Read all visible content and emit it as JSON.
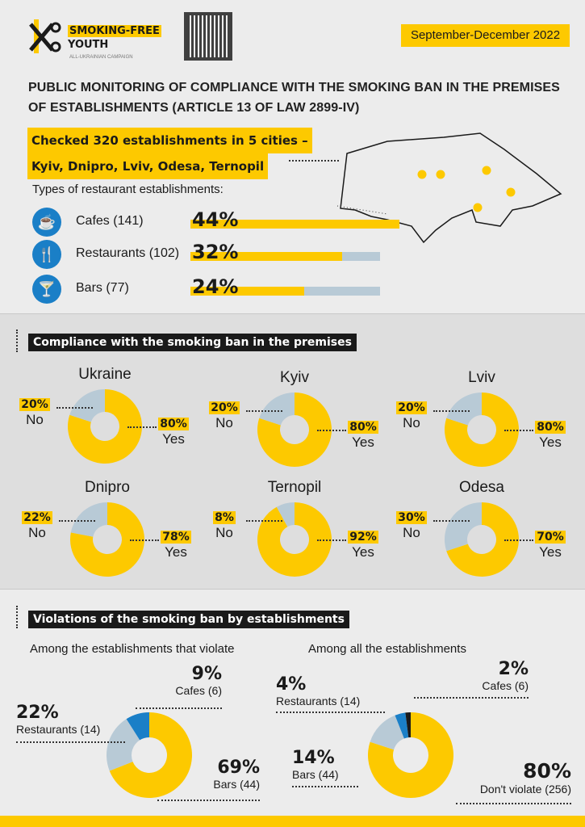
{
  "brand": {
    "name_line1": "SMOKING-FREE",
    "name_line2": "YOUTH",
    "subtitle": "ALL-UKRAINIAN CAMPAIGN"
  },
  "period": "September-December 2022",
  "title_line1": "PUBLIC MONITORING OF COMPLIANCE WITH THE SMOKING BAN IN THE PREMISES",
  "title_line2": "OF ESTABLISHMENTS (ARTICLE 13 OF LAW 2899-IV)",
  "checked_line1": "Checked 320 establishments in 5 cities –",
  "checked_line2": "Kyiv, Dnipro, Lviv, Odesa, Ternopil",
  "types_heading": "Types of restaurant establishments:",
  "types": [
    {
      "icon": "coffee-cup-icon",
      "glyph": "☕",
      "label": "Cafes (141)",
      "pct_text": "44%",
      "pct": 44
    },
    {
      "icon": "fork-knife-icon",
      "glyph": "🍴",
      "label": "Restaurants (102)",
      "pct_text": "32%",
      "pct": 32
    },
    {
      "icon": "cocktail-icon",
      "glyph": "🍸",
      "label": "Bars (77)",
      "pct_text": "24%",
      "pct": 24
    }
  ],
  "compliance": {
    "heading": "Compliance with the smoking ban in the premises",
    "no_label": "No",
    "yes_label": "Yes",
    "cities": [
      {
        "name": "Ukraine",
        "yes": 80,
        "no": 20,
        "yes_text": "80%",
        "no_text": "20%"
      },
      {
        "name": "Kyiv",
        "yes": 80,
        "no": 20,
        "yes_text": "80%",
        "no_text": "20%"
      },
      {
        "name": "Lviv",
        "yes": 80,
        "no": 20,
        "yes_text": "80%",
        "no_text": "20%"
      },
      {
        "name": "Dnipro",
        "yes": 78,
        "no": 22,
        "yes_text": "78%",
        "no_text": "22%"
      },
      {
        "name": "Ternopil",
        "yes": 92,
        "no": 8,
        "yes_text": "92%",
        "no_text": "8%"
      },
      {
        "name": "Odesa",
        "yes": 70,
        "no": 30,
        "yes_text": "70%",
        "no_text": "30%"
      }
    ]
  },
  "violations": {
    "heading": "Violations of the smoking ban by establishments",
    "left": {
      "title": "Among the establishments that violate",
      "slices": [
        {
          "label": "Bars (44)",
          "pct_text": "69%",
          "value": 69,
          "color": "#fdc900"
        },
        {
          "label": "Restaurants (14)",
          "pct_text": "22%",
          "value": 22,
          "color": "#b8cad6"
        },
        {
          "label": "Cafes (6)",
          "pct_text": "9%",
          "value": 9,
          "color": "#1a7fc7"
        }
      ]
    },
    "right": {
      "title": "Among all the establishments",
      "slices": [
        {
          "label": "Don't violate (256)",
          "pct_text": "80%",
          "value": 80,
          "color": "#fdc900"
        },
        {
          "label": "Bars (44)",
          "pct_text": "14%",
          "value": 14,
          "color": "#b8cad6"
        },
        {
          "label": "Restaurants (14)",
          "pct_text": "4%",
          "value": 4,
          "color": "#1a7fc7"
        },
        {
          "label": "Cafes (6)",
          "pct_text": "2%",
          "value": 2,
          "color": "#1a1a1a"
        }
      ]
    }
  },
  "colors": {
    "yellow": "#fdc900",
    "lightblue": "#b8cad6",
    "blue": "#1a7fc7",
    "black": "#1a1a1a"
  }
}
